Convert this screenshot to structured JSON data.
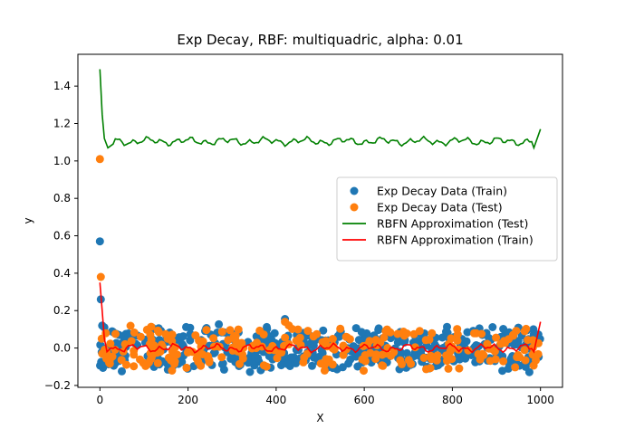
{
  "chart_data": {
    "type": "scatter",
    "title": "Exp Decay, RBF: multiquadric, alpha: 0.01",
    "xlabel": "X",
    "ylabel": "y",
    "xlim": [
      -50,
      1050
    ],
    "ylim": [
      -0.21,
      1.57
    ],
    "xticks": [
      0,
      200,
      400,
      600,
      800,
      1000
    ],
    "yticks": [
      -0.2,
      0.0,
      0.2,
      0.4,
      0.6,
      0.8,
      1.0,
      1.2,
      1.4
    ],
    "xtick_labels": [
      "0",
      "200",
      "400",
      "600",
      "800",
      "1000"
    ],
    "ytick_labels": [
      "−0.2",
      "0.0",
      "0.2",
      "0.4",
      "0.6",
      "0.8",
      "1.0",
      "1.2",
      "1.4"
    ],
    "grid": false,
    "legend_position": "center-right",
    "series": [
      {
        "name": "Exp Decay Data (Train)",
        "kind": "scatter",
        "color": "#1f77b4",
        "generated": {
          "x_from": 0,
          "x_to": 1000,
          "count": 480,
          "noise_amplitude": 0.13,
          "seed": 7
        },
        "outliers": [
          [
            0,
            0.57
          ],
          [
            2,
            0.26
          ],
          [
            5,
            0.12
          ],
          [
            10,
            0.11
          ],
          [
            420,
            0.155
          ]
        ]
      },
      {
        "name": "Exp Decay Data (Test)",
        "kind": "scatter",
        "color": "#ff7f0e",
        "generated": {
          "x_from": 0,
          "x_to": 1000,
          "count": 250,
          "noise_amplitude": 0.13,
          "seed": 31
        },
        "outliers": [
          [
            0,
            1.01
          ],
          [
            2,
            0.38
          ],
          [
            5,
            -0.03
          ],
          [
            420,
            0.14
          ],
          [
            510,
            -0.12
          ]
        ]
      },
      {
        "name": "RBFN Approximation (Test)",
        "kind": "line",
        "color": "#008000",
        "start": [
          [
            0,
            1.49
          ],
          [
            5,
            1.25
          ],
          [
            10,
            1.12
          ],
          [
            18,
            1.07
          ],
          [
            30,
            1.09
          ]
        ],
        "baseline": 1.105,
        "wiggle": 0.02,
        "end": [
          [
            985,
            1.07
          ],
          [
            1000,
            1.17
          ]
        ]
      },
      {
        "name": "RBFN Approximation (Train)",
        "kind": "line",
        "color": "#ff0000",
        "start": [
          [
            0,
            0.35
          ],
          [
            5,
            0.2
          ],
          [
            10,
            0.05
          ],
          [
            16,
            -0.02
          ],
          [
            25,
            0.0
          ]
        ],
        "baseline": 0.0,
        "wiggle": 0.02,
        "end": [
          [
            985,
            -0.02
          ],
          [
            1000,
            0.14
          ]
        ]
      }
    ]
  }
}
